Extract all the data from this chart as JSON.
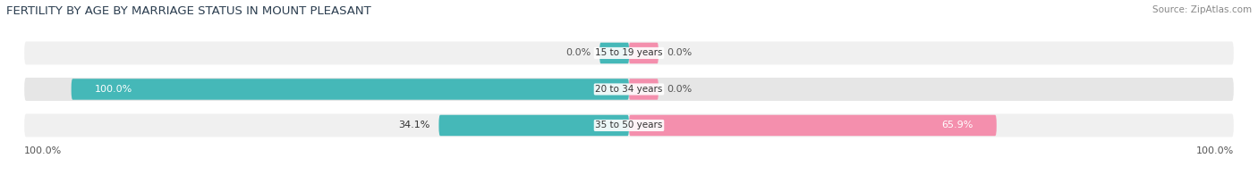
{
  "title": "FERTILITY BY AGE BY MARRIAGE STATUS IN MOUNT PLEASANT",
  "source": "Source: ZipAtlas.com",
  "categories": [
    "15 to 19 years",
    "20 to 34 years",
    "35 to 50 years"
  ],
  "married_values": [
    0.0,
    100.0,
    34.1
  ],
  "unmarried_values": [
    0.0,
    0.0,
    65.9
  ],
  "married_color": "#45b8b8",
  "unmarried_color": "#f48fad",
  "row_bg_color_odd": "#f0f0f0",
  "row_bg_color_even": "#e6e6e6",
  "title_fontsize": 9.5,
  "source_fontsize": 7.5,
  "label_fontsize": 8,
  "category_label_fontsize": 7.5,
  "axis_label_left": "100.0%",
  "axis_label_right": "100.0%",
  "bar_height": 0.58,
  "small_bar_size": 5.0
}
